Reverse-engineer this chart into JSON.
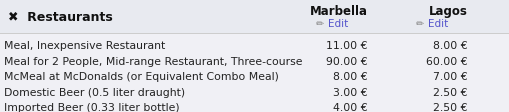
{
  "title": "Restaurants",
  "col1_header": "Marbella",
  "col2_header": "Lagos",
  "edit_label": "Edit",
  "edit_color": "#5555cc",
  "pencil_color": "#888888",
  "rows": [
    {
      "label": "Meal, Inexpensive Restaurant",
      "val1": "11.00 €",
      "val2": "8.00 €"
    },
    {
      "label": "Meal for 2 People, Mid-range Restaurant, Three-course",
      "val1": "90.00 €",
      "val2": "60.00 €"
    },
    {
      "label": "McMeal at McDonalds (or Equivalent Combo Meal)",
      "val1": "8.00 €",
      "val2": "7.00 €"
    },
    {
      "label": "Domestic Beer (0.5 liter draught)",
      "val1": "3.00 €",
      "val2": "2.50 €"
    },
    {
      "label": "Imported Beer (0.33 liter bottle)",
      "val1": "4.00 €",
      "val2": "2.50 €"
    }
  ],
  "bg_color": "#f0f0f5",
  "header_color": "#111111",
  "row_color": "#222222",
  "title_fontsize": 9.0,
  "header_fontsize": 8.5,
  "edit_fontsize": 7.5,
  "row_fontsize": 7.8,
  "fig_width": 5.1,
  "fig_height": 1.12
}
